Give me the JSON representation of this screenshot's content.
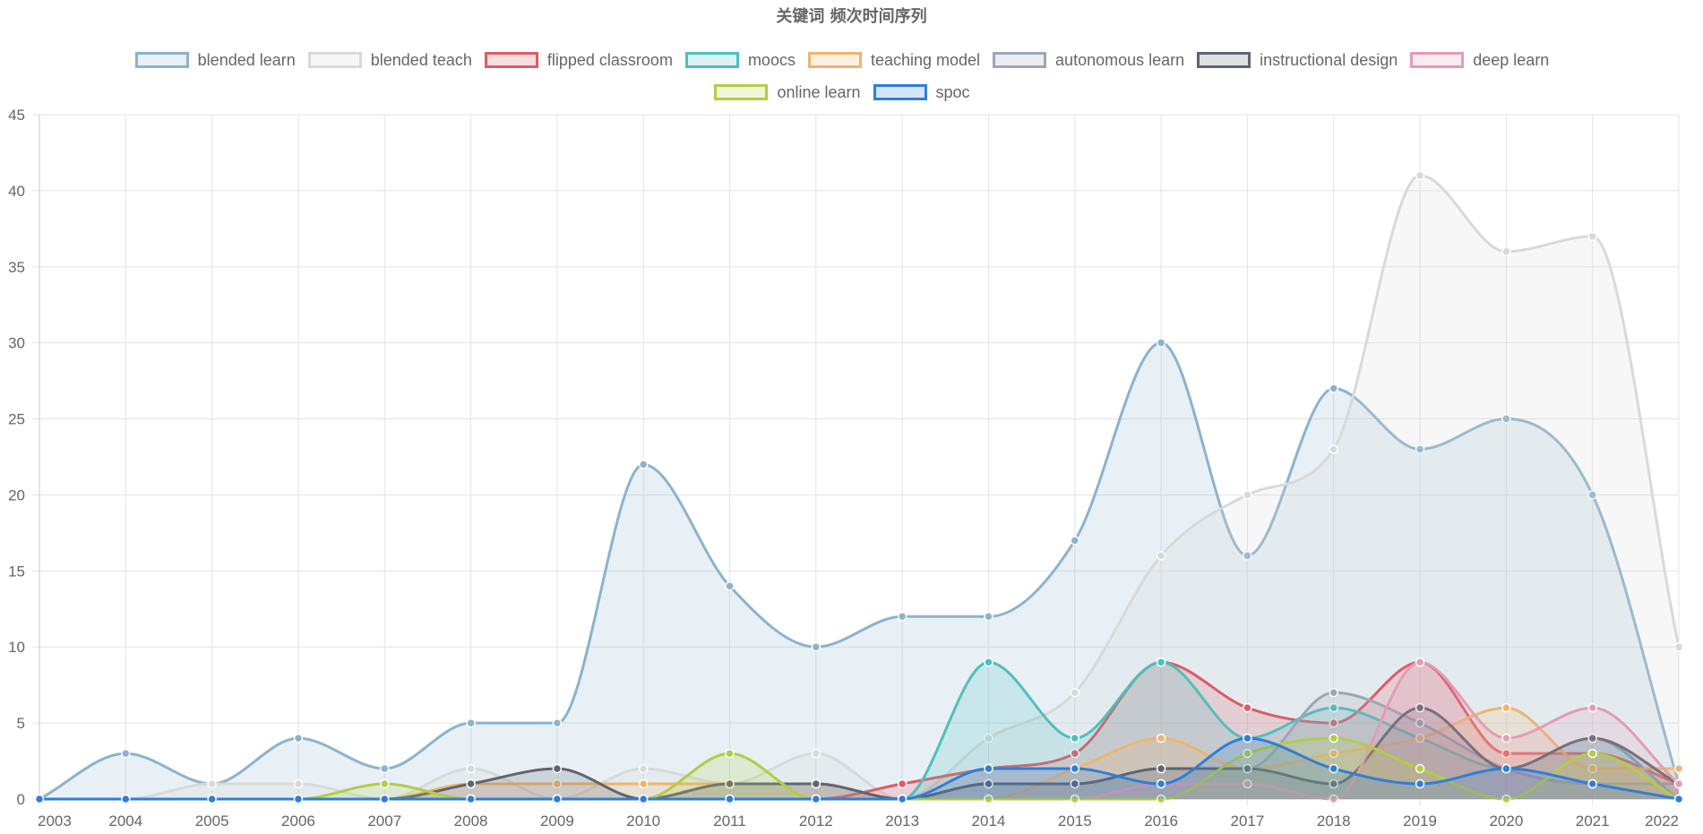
{
  "chart_data": {
    "type": "area",
    "title": "关键词 频次时间序列",
    "xlabel": "",
    "ylabel": "",
    "ylim": [
      0,
      45
    ],
    "yticks": [
      0,
      5,
      10,
      15,
      20,
      25,
      30,
      35,
      40,
      45
    ],
    "grid": true,
    "legend_position": "top",
    "categories": [
      "2003",
      "2004",
      "2005",
      "2006",
      "2007",
      "2008",
      "2009",
      "2010",
      "2011",
      "2012",
      "2013",
      "2014",
      "2015",
      "2016",
      "2017",
      "2018",
      "2019",
      "2020",
      "2021",
      "2022"
    ],
    "series": [
      {
        "name": "blended learn",
        "color": "#8cb3cc",
        "fill": "rgba(140,179,204,0.20)",
        "values": [
          0,
          3,
          1,
          4,
          2,
          5,
          5,
          22,
          14,
          10,
          12,
          12,
          17,
          30,
          16,
          27,
          23,
          25,
          20,
          1
        ]
      },
      {
        "name": "blended teach",
        "color": "#d9d9d9",
        "fill": "rgba(217,217,217,0.20)",
        "values": [
          0,
          0,
          1,
          1,
          0,
          2,
          0,
          2,
          1,
          3,
          0,
          4,
          7,
          16,
          20,
          23,
          41,
          36,
          37,
          10
        ]
      },
      {
        "name": "flipped classroom",
        "color": "#e05a65",
        "fill": "rgba(224,90,101,0.20)",
        "values": [
          0,
          0,
          0,
          0,
          0,
          0,
          0,
          0,
          0,
          0,
          1,
          2,
          3,
          9,
          6,
          5,
          9,
          3,
          3,
          1
        ]
      },
      {
        "name": "moocs",
        "color": "#4fbfbf",
        "fill": "rgba(79,191,191,0.20)",
        "values": [
          0,
          0,
          0,
          0,
          0,
          0,
          0,
          0,
          0,
          0,
          0,
          9,
          4,
          9,
          4,
          6,
          4,
          2,
          4,
          0
        ]
      },
      {
        "name": "teaching model",
        "color": "#f0b46e",
        "fill": "rgba(240,180,110,0.20)",
        "values": [
          0,
          0,
          0,
          0,
          0,
          1,
          1,
          1,
          1,
          1,
          0,
          0,
          2,
          4,
          2,
          3,
          4,
          6,
          2,
          2
        ]
      },
      {
        "name": "autonomous learn",
        "color": "#9da6b3",
        "fill": "rgba(157,166,179,0.20)",
        "values": [
          0,
          0,
          0,
          0,
          0,
          0,
          0,
          0,
          1,
          1,
          0,
          1,
          1,
          2,
          2,
          7,
          5,
          2,
          1,
          1
        ]
      },
      {
        "name": "instructional design",
        "color": "#5f6470",
        "fill": "rgba(95,100,112,0.20)",
        "values": [
          0,
          0,
          0,
          0,
          0,
          1,
          2,
          0,
          1,
          1,
          0,
          1,
          1,
          2,
          2,
          1,
          6,
          2,
          4,
          1
        ]
      },
      {
        "name": "deep learn",
        "color": "#e39cb3",
        "fill": "rgba(227,156,179,0.20)",
        "values": [
          0,
          0,
          0,
          0,
          0,
          0,
          0,
          0,
          0,
          0,
          0,
          0,
          0,
          1,
          1,
          0,
          9,
          4,
          6,
          1
        ]
      },
      {
        "name": "online learn",
        "color": "#b4cc46",
        "fill": "rgba(180,204,70,0.20)",
        "values": [
          0,
          0,
          0,
          0,
          1,
          0,
          0,
          0,
          3,
          0,
          0,
          0,
          0,
          0,
          3,
          4,
          2,
          0,
          3,
          0
        ]
      },
      {
        "name": "spoc",
        "color": "#2f7ed8",
        "fill": "rgba(47,126,216,0.20)",
        "values": [
          0,
          0,
          0,
          0,
          0,
          0,
          0,
          0,
          0,
          0,
          0,
          2,
          2,
          1,
          4,
          2,
          1,
          2,
          1,
          0
        ]
      }
    ]
  }
}
